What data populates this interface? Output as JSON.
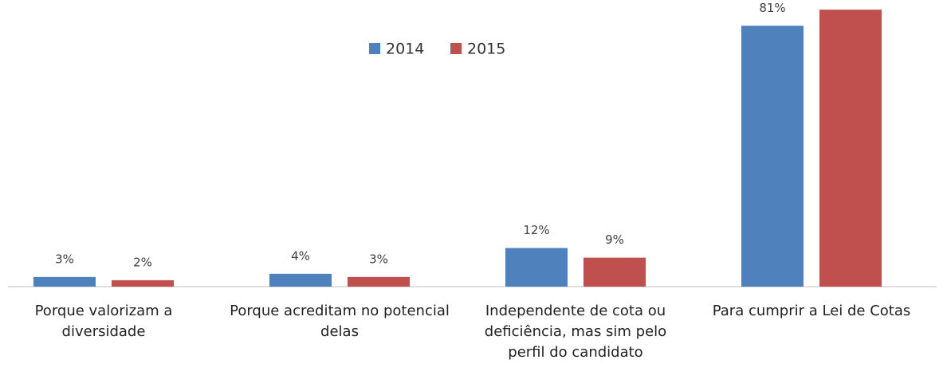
{
  "chart_data": {
    "type": "bar",
    "categories": [
      "Porque valorizam a diversidade",
      "Porque acreditam no potencial delas",
      "Independente de cota ou deficiência, mas sim pelo perfil do candidato",
      "Para cumprir a Lei de Cotas"
    ],
    "series": [
      {
        "name": "2014",
        "color": "#4f81bd",
        "values": [
          3,
          4,
          12,
          81
        ],
        "value_labels": [
          "3%",
          "4%",
          "12%",
          "81%"
        ]
      },
      {
        "name": "2015",
        "color": "#c0504d",
        "values": [
          2,
          3,
          9,
          86
        ],
        "value_labels": [
          "2%",
          "3%",
          "9%",
          null
        ]
      }
    ],
    "ylim": [
      0,
      89
    ],
    "legend": "top"
  }
}
